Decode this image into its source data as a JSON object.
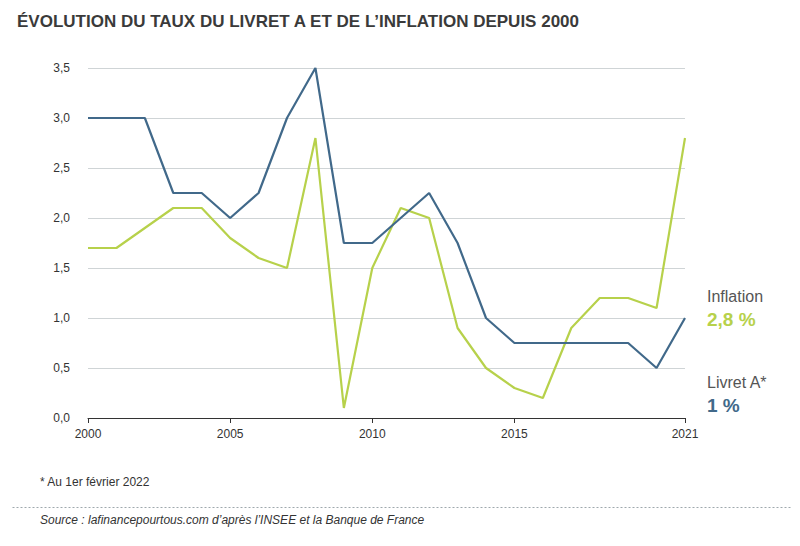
{
  "chart_data": {
    "type": "line",
    "title": "ÉVOLUTION DU TAUX DU LIVRET A ET DE L’INFLATION DEPUIS 2000",
    "x": [
      2000,
      2001,
      2002,
      2003,
      2004,
      2005,
      2006,
      2007,
      2008,
      2009,
      2010,
      2011,
      2012,
      2013,
      2014,
      2015,
      2016,
      2017,
      2018,
      2019,
      2020,
      2021
    ],
    "series": [
      {
        "name": "Livret A",
        "color": "#41698a",
        "values": [
          3.0,
          3.0,
          3.0,
          2.25,
          2.25,
          2.0,
          2.25,
          3.0,
          3.5,
          1.75,
          1.75,
          2.0,
          2.25,
          1.75,
          1.0,
          0.75,
          0.75,
          0.75,
          0.75,
          0.75,
          0.5,
          1.0
        ]
      },
      {
        "name": "Inflation",
        "color": "#b7d14b",
        "values": [
          1.7,
          1.7,
          1.9,
          2.1,
          2.1,
          1.8,
          1.6,
          1.5,
          2.8,
          0.1,
          1.5,
          2.1,
          2.0,
          0.9,
          0.5,
          0.3,
          0.2,
          0.9,
          1.2,
          1.2,
          1.1,
          2.8
        ]
      }
    ],
    "xlim": [
      2000,
      2021
    ],
    "xticks": [
      2000,
      2005,
      2010,
      2015,
      2021
    ],
    "ylim": [
      0,
      3.5
    ],
    "yticks": [
      {
        "value": 0,
        "label": "0,0"
      },
      {
        "value": 0.5,
        "label": "0,5"
      },
      {
        "value": 1,
        "label": "1,0"
      },
      {
        "value": 1.5,
        "label": "1,5"
      },
      {
        "value": 2,
        "label": "2,0"
      },
      {
        "value": 2.5,
        "label": "2,5"
      },
      {
        "value": 3,
        "label": "3,0"
      },
      {
        "value": 3.5,
        "label": "3,5"
      }
    ],
    "grid": true,
    "annotations": [
      {
        "series": "Inflation",
        "label": "Inflation",
        "value_text": "2,8 %"
      },
      {
        "series": "Livret A",
        "label": "Livret A*",
        "value_text": "1 %"
      }
    ],
    "footnote": "* Au 1er février 2022",
    "source": "Source : lafinancepourtous.com d’après l’INSEE et la Banque de France"
  }
}
